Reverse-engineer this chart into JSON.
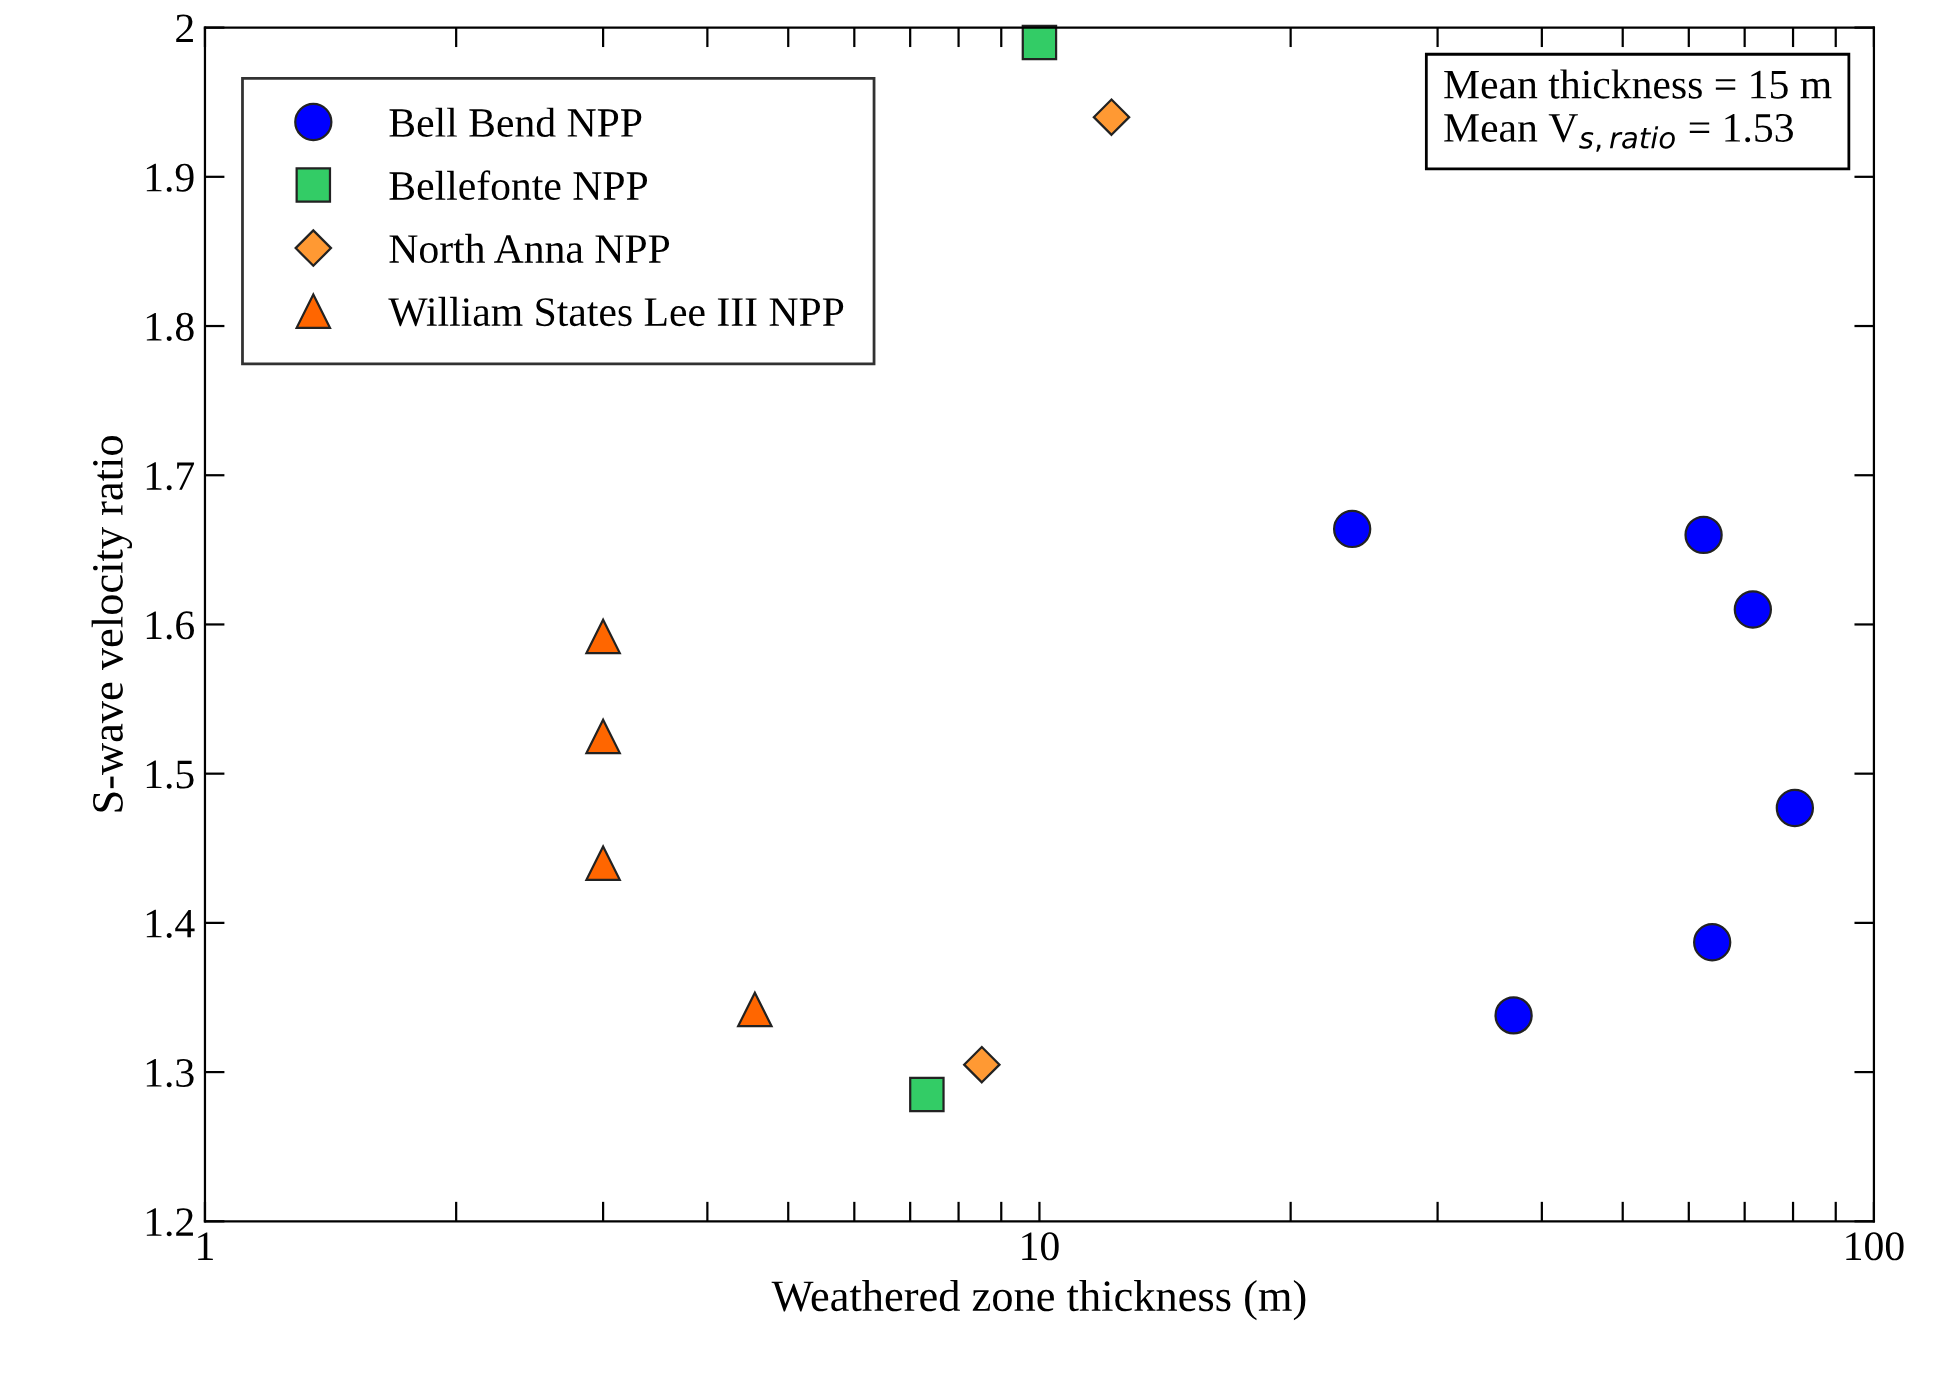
{
  "chart_data": {
    "type": "scatter",
    "xlabel": "Weathered zone thickness (m)",
    "ylabel": "S-wave velocity ratio",
    "log": "x",
    "xlim": [
      1,
      100
    ],
    "ylim": [
      1.2,
      2.0
    ],
    "xticks": [
      1,
      {
        "value": 2,
        "label": null
      },
      {
        "value": 3,
        "label": null
      },
      {
        "value": 4,
        "label": null
      },
      {
        "value": 5,
        "label": null
      },
      {
        "value": 6,
        "label": null
      },
      {
        "value": 7,
        "label": null
      },
      {
        "value": 8,
        "label": null
      },
      {
        "value": 9,
        "label": null
      },
      10,
      {
        "value": 20,
        "label": null
      },
      {
        "value": 30,
        "label": null
      },
      {
        "value": 40,
        "label": null
      },
      {
        "value": 50,
        "label": null
      },
      {
        "value": 60,
        "label": null
      },
      {
        "value": 70,
        "label": null
      },
      {
        "value": 80,
        "label": null
      },
      {
        "value": 90,
        "label": null
      },
      100
    ],
    "yticks": [
      1.2,
      1.3,
      1.4,
      1.5,
      1.6,
      1.7,
      1.8,
      1.9,
      2
    ],
    "grid": false,
    "legend": "top left",
    "annotations": [
      "Mean thickness = 15 m",
      "Mean V$_{s,ratio}$ = 1.53"
    ],
    "series": [
      {
        "name": "Bell Bend NPP",
        "color": "#0000ff",
        "marker": "circle",
        "x": [
          23.7,
          62.5,
          71.6,
          80.4,
          64,
          37
        ],
        "values": [
          1.664,
          1.66,
          1.61,
          1.477,
          1.387,
          1.338
        ]
      },
      {
        "name": "Bellefonte NPP",
        "color": "#33cc66",
        "marker": "square",
        "x": [
          10,
          7.33
        ],
        "values": [
          1.99,
          1.285
        ]
      },
      {
        "name": "North Anna NPP",
        "color": "#ff9933",
        "marker": "diamond",
        "x": [
          12.2,
          8.53
        ],
        "values": [
          1.94,
          1.305
        ]
      },
      {
        "name": "William States Lee III NPP",
        "color": "#ff6600",
        "marker": "triangle",
        "x": [
          3.0,
          3.0,
          3.0,
          4.56
        ],
        "values": [
          1.592,
          1.525,
          1.44,
          1.342
        ]
      }
    ]
  }
}
